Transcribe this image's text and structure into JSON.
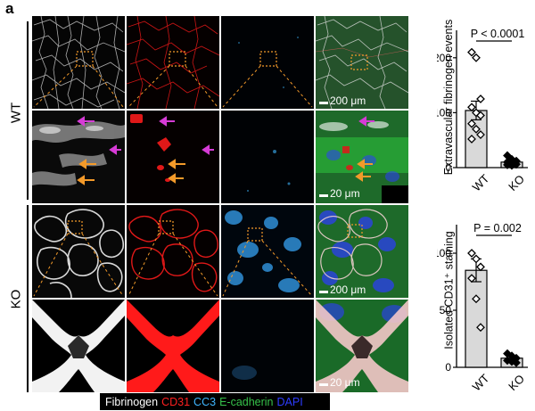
{
  "panel_label": "a",
  "rows": {
    "wt_label": "WT",
    "ko_label": "KO"
  },
  "scale_bars": {
    "wt_overview": "200 μm",
    "wt_zoom": "20 μm",
    "ko_overview": "200 μm",
    "ko_zoom": "20 μm"
  },
  "legend": {
    "items": [
      {
        "label": "Fibrinogen",
        "color": "#ffffff"
      },
      {
        "label": "CD31",
        "color": "#ff2020"
      },
      {
        "label": "CC3",
        "color": "#3fb6ff"
      },
      {
        "label": "E-cadherin",
        "color": "#36c24a"
      },
      {
        "label": "DAPI",
        "color": "#2d3cff"
      }
    ]
  },
  "colors": {
    "fibrinogen": "#ffffff",
    "cd31": "#ff2020",
    "cc3": "#3fb6ff",
    "ecadherin": "#36c24a",
    "dapi": "#2d3cff",
    "zoom_box": "#f39a2a",
    "arrow_orange": "#f39a2a",
    "arrow_magenta": "#d63bd6"
  },
  "chart_data": [
    {
      "type": "bar",
      "categories": [
        "WT",
        "KO"
      ],
      "values": [
        104,
        10
      ],
      "error": [
        17,
        3
      ],
      "points": {
        "WT": [
          210,
          200,
          125,
          110,
          100,
          95,
          80,
          70,
          60,
          52
        ],
        "KO": [
          22,
          15,
          12,
          10,
          8,
          6,
          5,
          4
        ]
      },
      "ylabel": "Extravascular fibrinogen events",
      "ylim": [
        0,
        250
      ],
      "yticks": [
        0,
        100,
        200
      ],
      "annotation": "P < 0.0001",
      "grid": false,
      "bar_fill": "#d9d9d9",
      "marker_wt": "open-diamond",
      "marker_ko": "filled-diamond"
    },
    {
      "type": "bar",
      "categories": [
        "WT",
        "KO"
      ],
      "values": [
        85,
        8
      ],
      "error": [
        10,
        2
      ],
      "points": {
        "WT": [
          100,
          95,
          88,
          78,
          60,
          35
        ],
        "KO": [
          12,
          10,
          8,
          6,
          5,
          4
        ]
      },
      "ylabel": "Isolated CD31⁺ staining",
      "ylim": [
        0,
        125
      ],
      "yticks": [
        0,
        50,
        100
      ],
      "annotation": "P = 0.002",
      "grid": false,
      "bar_fill": "#d9d9d9",
      "marker_wt": "open-diamond",
      "marker_ko": "filled-diamond"
    }
  ]
}
